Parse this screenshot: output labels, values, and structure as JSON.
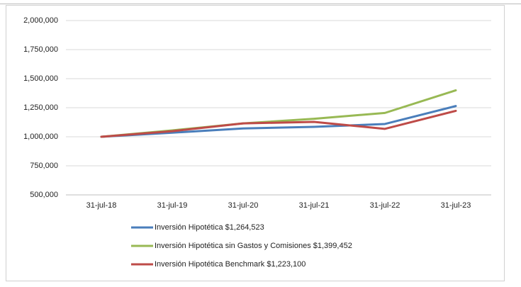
{
  "chart_data": {
    "type": "line",
    "categories": [
      "31-jul-18",
      "31-jul-19",
      "31-jul-20",
      "31-jul-21",
      "31-jul-22",
      "31-jul-23"
    ],
    "series": [
      {
        "name": "Inversión Hipotética $1,264,523",
        "color": "#4a7ebb",
        "values": [
          1000000,
          1035000,
          1072000,
          1085000,
          1110000,
          1264523
        ]
      },
      {
        "name": "Inversión Hipotética sin Gastos y Comisiones $1,399,452",
        "color": "#98b954",
        "values": [
          1000000,
          1055000,
          1115000,
          1155000,
          1205000,
          1399452
        ]
      },
      {
        "name": "Inversión Hipotética Benchmark $1,223,100",
        "color": "#be4b48",
        "values": [
          1000000,
          1048000,
          1115000,
          1128000,
          1068000,
          1223100
        ]
      }
    ],
    "ylim": [
      500000,
      2000000
    ],
    "yticks": [
      {
        "value": 500000,
        "label": "500,000"
      },
      {
        "value": 750000,
        "label": "750,000"
      },
      {
        "value": 1000000,
        "label": "1,000,000"
      },
      {
        "value": 1250000,
        "label": "1,250,000"
      },
      {
        "value": 1500000,
        "label": "1,500,000"
      },
      {
        "value": 1750000,
        "label": "1,750,000"
      },
      {
        "value": 2000000,
        "label": "2,000,000"
      }
    ],
    "grid": true
  }
}
